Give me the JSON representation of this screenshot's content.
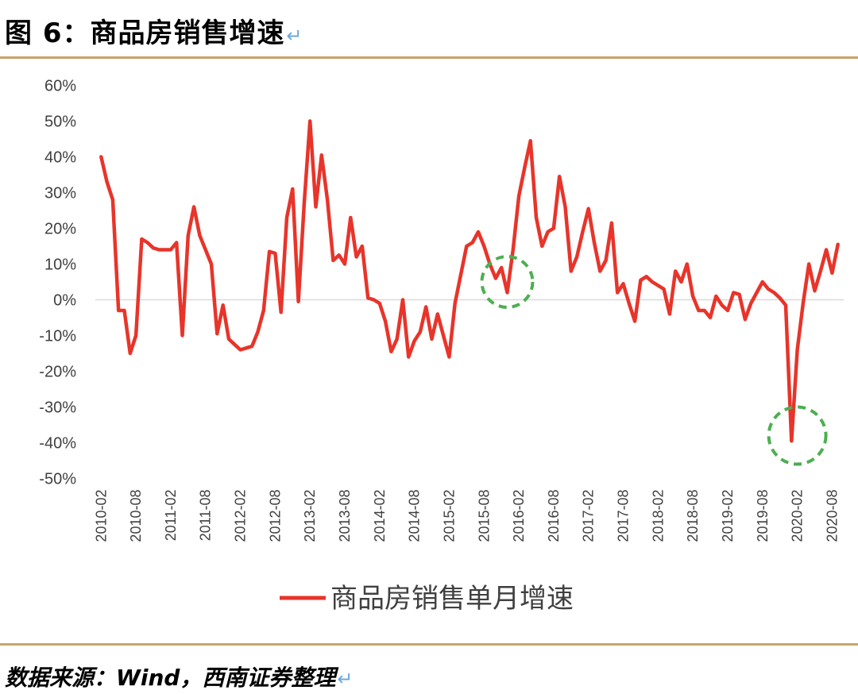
{
  "figure": {
    "title": "图 6：商品房销售增速",
    "return_mark": "↵",
    "source": "数据来源：Wind，西南证券整理"
  },
  "chart_data": {
    "type": "line",
    "title": "",
    "xlabel": "",
    "ylabel": "",
    "ylim": [
      -50,
      60
    ],
    "yticks": [
      "60%",
      "50%",
      "40%",
      "30%",
      "20%",
      "10%",
      "0%",
      "-10%",
      "-20%",
      "-30%",
      "-40%",
      "-50%"
    ],
    "ytick_values": [
      60,
      50,
      40,
      30,
      20,
      10,
      0,
      -10,
      -20,
      -30,
      -40,
      -50
    ],
    "xticks": [
      "2010-02",
      "2010-08",
      "2011-02",
      "2011-08",
      "2012-02",
      "2012-08",
      "2013-02",
      "2013-08",
      "2014-02",
      "2014-08",
      "2015-02",
      "2015-08",
      "2016-02",
      "2016-08",
      "2017-02",
      "2017-08",
      "2018-02",
      "2018-08",
      "2019-02",
      "2019-08",
      "2020-02",
      "2020-08"
    ],
    "legend": {
      "position": "bottom",
      "entries": [
        "商品房销售单月增速"
      ]
    },
    "grid": false,
    "line_color": "#e8342a",
    "annotation_color": "#4caf50",
    "series": [
      {
        "name": "商品房销售单月增速",
        "x_start": "2010-02",
        "values": [
          40,
          33,
          28,
          -3,
          -3,
          -15,
          -10,
          17,
          16,
          14.5,
          14,
          14,
          14,
          16,
          -10,
          18,
          26,
          18,
          14,
          10,
          -9.5,
          -1.5,
          -11,
          -12.5,
          -14,
          -13.5,
          -13,
          -9,
          -3,
          13.5,
          13,
          -3.5,
          23,
          31,
          -0.5,
          27,
          50,
          26,
          40.5,
          28,
          11,
          12.5,
          10,
          23,
          12,
          15,
          0.5,
          0,
          -1,
          -6,
          -14.5,
          -11,
          0,
          -16,
          -11.5,
          -9,
          -2,
          -11,
          -4,
          -10,
          -16,
          -1,
          7,
          15,
          16,
          19,
          15,
          10,
          6,
          9,
          2,
          14,
          29,
          37,
          44.5,
          23,
          15,
          19,
          20,
          34.5,
          26,
          8,
          12,
          19,
          25.5,
          16,
          8,
          11,
          21.5,
          2,
          4.5,
          -1,
          -6,
          5.5,
          6.5,
          5,
          4,
          3,
          -4,
          8,
          5,
          10,
          1,
          -3,
          -3,
          -5,
          1,
          -1.5,
          -3,
          2,
          1.5,
          -5.5,
          -1,
          2,
          5,
          3,
          2,
          0.5,
          -1.5,
          -39.5,
          -14,
          -1,
          10,
          2.5,
          8,
          14,
          7.5,
          15.5
        ]
      }
    ],
    "annotations": [
      {
        "type": "circle",
        "x": "2015-12",
        "y": 5,
        "style": "dashed"
      },
      {
        "type": "circle",
        "x": "2020-02",
        "y": -38,
        "style": "dashed"
      }
    ]
  }
}
